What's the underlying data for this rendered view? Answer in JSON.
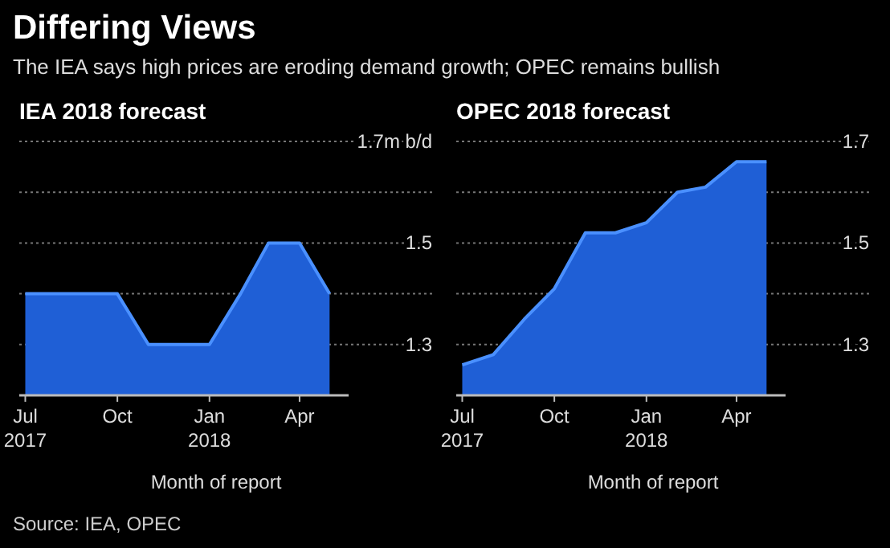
{
  "chart_data": [
    {
      "type": "other",
      "title": "Differing Views",
      "subtitle": "The IEA says high prices are eroding demand growth; OPEC remains bullish",
      "annotations": [
        "Source: IEA, OPEC"
      ]
    },
    {
      "type": "area",
      "title": "IEA 2018 forecast",
      "xlabel": "Month of report",
      "grid": "y",
      "x": [
        "2017-07",
        "2017-08",
        "2017-09",
        "2017-10",
        "2017-11",
        "2017-12",
        "2018-01",
        "2018-02",
        "2018-03",
        "2018-04",
        "2018-05"
      ],
      "series": [
        {
          "color": "#1f5fd6",
          "values": [
            1.4,
            1.4,
            1.4,
            1.4,
            1.3,
            1.3,
            1.3,
            1.4,
            1.5,
            1.5,
            1.4
          ]
        }
      ],
      "xlim": [
        "2017-06-25",
        "2018-05-20"
      ],
      "ylim": [
        1.2,
        1.7
      ],
      "xticks": [
        {
          "value": "2017-07",
          "label": "Jul\n2017"
        },
        {
          "value": "2017-10",
          "label": "Oct"
        },
        {
          "value": "2018-01",
          "label": "Jan\n2018"
        },
        {
          "value": "2018-04",
          "label": "Apr"
        }
      ],
      "yticks": [
        {
          "value": 1.3,
          "label": "1.3"
        },
        {
          "value": 1.4,
          "label": null
        },
        {
          "value": 1.5,
          "label": "1.5"
        },
        {
          "value": 1.6,
          "label": null
        },
        {
          "value": 1.7,
          "label": "1.7m b/d"
        }
      ]
    },
    {
      "type": "area",
      "title": "OPEC 2018 forecast",
      "xlabel": "Month of report",
      "grid": "y",
      "x": [
        "2017-07",
        "2017-08",
        "2017-09",
        "2017-10",
        "2017-11",
        "2017-12",
        "2018-01",
        "2018-02",
        "2018-03",
        "2018-04",
        "2018-05"
      ],
      "series": [
        {
          "color": "#1f5fd6",
          "values": [
            1.26,
            1.28,
            1.35,
            1.41,
            1.52,
            1.52,
            1.54,
            1.6,
            1.61,
            1.66,
            1.66
          ]
        }
      ],
      "xlim": [
        "2017-06-25",
        "2018-05-20"
      ],
      "ylim": [
        1.2,
        1.7
      ],
      "xticks": [
        {
          "value": "2017-07",
          "label": "Jul\n2017"
        },
        {
          "value": "2017-10",
          "label": "Oct"
        },
        {
          "value": "2018-01",
          "label": "Jan\n2018"
        },
        {
          "value": "2018-04",
          "label": "Apr"
        }
      ],
      "yticks": [
        1.3,
        {
          "value": 1.4,
          "label": null
        },
        1.5,
        {
          "value": 1.6,
          "label": null
        },
        1.7
      ]
    }
  ]
}
